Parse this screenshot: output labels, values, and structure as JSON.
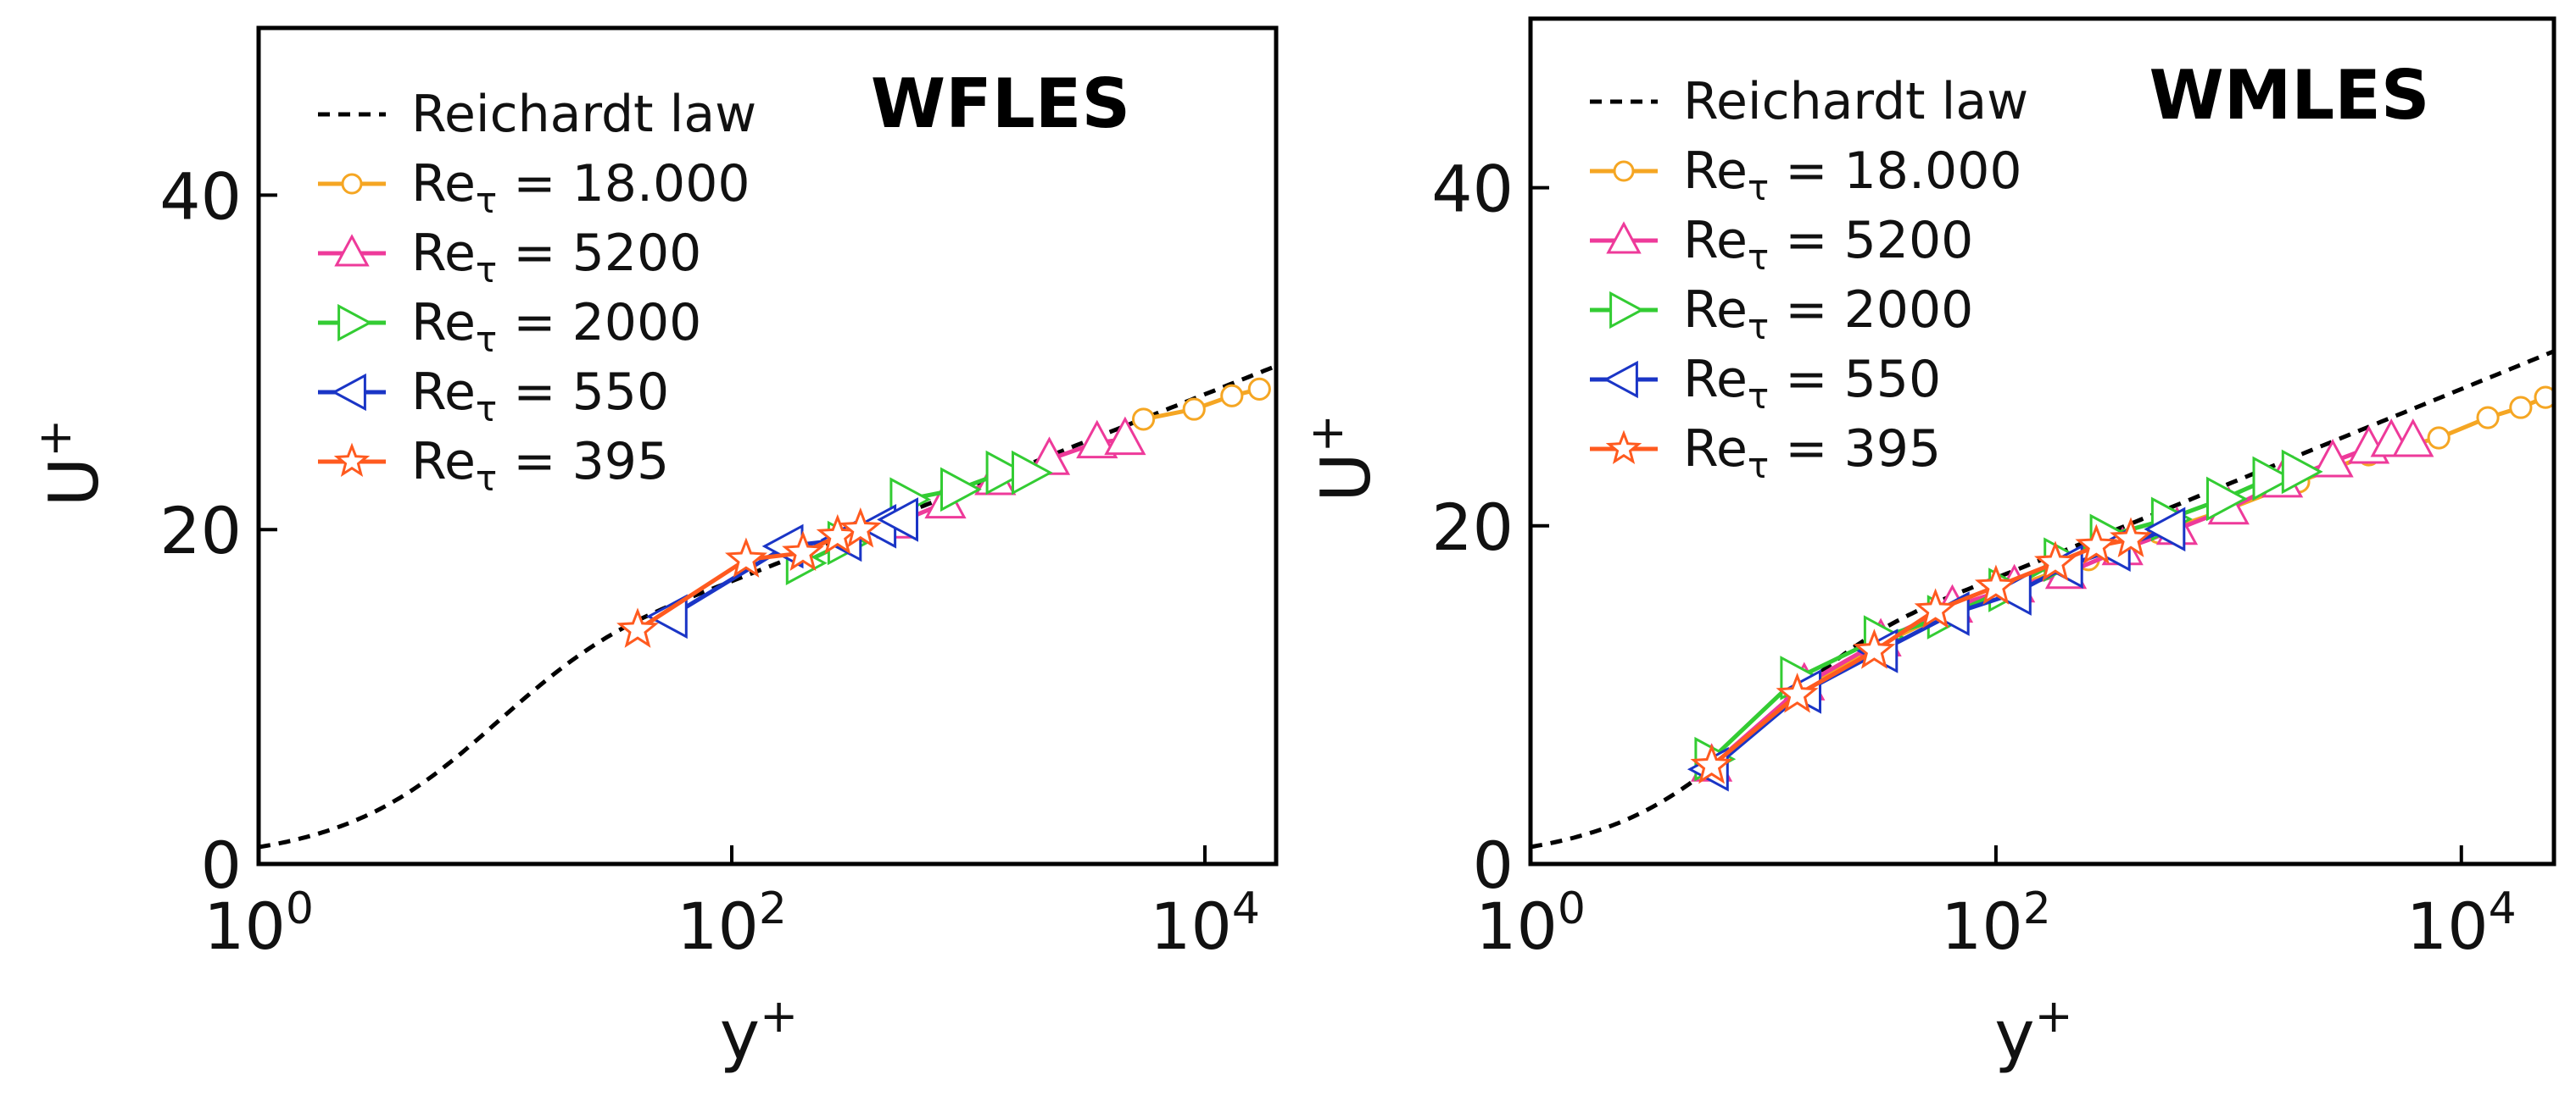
{
  "chart_data": [
    {
      "type": "line",
      "title": "WFLES",
      "xlabel": "y",
      "xlabel_sup": "+",
      "ylabel": "U",
      "ylabel_sup": "+",
      "xscale": "log",
      "xlim": [
        1,
        20000
      ],
      "ylim": [
        0,
        50
      ],
      "x_ticks": [
        {
          "base": "10",
          "exp": "0",
          "value": 1
        },
        {
          "base": "10",
          "exp": "2",
          "value": 100
        },
        {
          "base": "10",
          "exp": "4",
          "value": 10000
        }
      ],
      "y_ticks": [
        {
          "label": "0",
          "value": 0
        },
        {
          "label": "20",
          "value": 20
        },
        {
          "label": "40",
          "value": 40
        }
      ],
      "legend_position": "top-left",
      "reference": {
        "name": "Reichardt law",
        "color": "#000000",
        "dash": true,
        "x_min": 1,
        "x_max": 20000
      },
      "series": [
        {
          "name": "Re",
          "sub": "τ",
          "val": "= 18.000",
          "color": "#f5a623",
          "marker": "circle",
          "x": [
            5500,
            9000,
            13000,
            17000
          ],
          "y": [
            26.6,
            27.2,
            28.0,
            28.4
          ]
        },
        {
          "name": "Re",
          "sub": "τ",
          "val": "= 5200",
          "color": "#ee3a9a",
          "marker": "triangle-up",
          "x": [
            500,
            800,
            1300,
            2200,
            3500,
            4600
          ],
          "y": [
            20.4,
            21.6,
            23.0,
            24.2,
            25.2,
            25.4
          ]
        },
        {
          "name": "Re",
          "sub": "τ",
          "val": "= 2000",
          "color": "#33cc33",
          "marker": "triangle-right",
          "x": [
            200,
            300,
            550,
            900,
            1400,
            1800
          ],
          "y": [
            18.0,
            19.2,
            21.8,
            22.4,
            23.4,
            23.4
          ]
        },
        {
          "name": "Re",
          "sub": "τ",
          "val": "= 550",
          "color": "#1a35c6",
          "marker": "triangle-left",
          "x": [
            55,
            170,
            300,
            420,
            520
          ],
          "y": [
            14.8,
            19.0,
            19.4,
            20.2,
            20.6
          ]
        },
        {
          "name": "Re",
          "sub": "τ",
          "val": "= 395",
          "color": "#ff5a1f",
          "marker": "star",
          "x": [
            40,
            115,
            200,
            280,
            350
          ],
          "y": [
            14.0,
            18.2,
            18.6,
            19.6,
            20.0
          ]
        }
      ]
    },
    {
      "type": "line",
      "title": "WMLES",
      "xlabel": "y",
      "xlabel_sup": "+",
      "ylabel": "U",
      "ylabel_sup": "+",
      "xscale": "log",
      "xlim": [
        1,
        25000
      ],
      "ylim": [
        0,
        50
      ],
      "x_ticks": [
        {
          "base": "10",
          "exp": "0",
          "value": 1
        },
        {
          "base": "10",
          "exp": "2",
          "value": 100
        },
        {
          "base": "10",
          "exp": "4",
          "value": 10000
        }
      ],
      "y_ticks": [
        {
          "label": "0",
          "value": 0
        },
        {
          "label": "20",
          "value": 20
        },
        {
          "label": "40",
          "value": 40
        }
      ],
      "legend_position": "top-left",
      "reference": {
        "name": "Reichardt law",
        "color": "#000000",
        "dash": true,
        "x_min": 1,
        "x_max": 25000
      },
      "series": [
        {
          "name": "Re",
          "sub": "τ",
          "val": "= 18.000",
          "color": "#f5a623",
          "marker": "circle",
          "x": [
            6,
            15,
            32,
            65,
            120,
            250,
            500,
            1000,
            2000,
            4000,
            8000,
            13000,
            18000,
            23000
          ],
          "y": [
            5.8,
            10.4,
            13.0,
            15.0,
            16.4,
            18.0,
            19.6,
            21.0,
            22.6,
            24.2,
            25.2,
            26.4,
            27.0,
            27.6
          ]
        },
        {
          "name": "Re",
          "sub": "τ",
          "val": "= 5200",
          "color": "#ee3a9a",
          "marker": "triangle-up",
          "x": [
            6,
            15,
            32,
            65,
            120,
            200,
            350,
            600,
            1000,
            1700,
            2800,
            4000,
            5000,
            6200
          ],
          "y": [
            5.8,
            10.6,
            13.2,
            15.2,
            16.4,
            17.2,
            18.6,
            19.8,
            21.0,
            22.6,
            23.8,
            24.6,
            25.0,
            25.0
          ]
        },
        {
          "name": "Re",
          "sub": "τ",
          "val": "= 2000",
          "color": "#33cc33",
          "marker": "triangle-right",
          "x": [
            6,
            14,
            32,
            60,
            110,
            190,
            300,
            550,
            950,
            1500,
            2000
          ],
          "y": [
            6.2,
            11.0,
            13.4,
            14.6,
            16.2,
            18.0,
            19.4,
            20.4,
            21.6,
            22.8,
            23.2
          ]
        },
        {
          "name": "Re",
          "sub": "τ",
          "val": "= 550",
          "color": "#1a35c6",
          "marker": "triangle-left",
          "x": [
            6,
            15,
            32,
            65,
            120,
            200,
            320,
            550
          ],
          "y": [
            5.6,
            10.2,
            12.6,
            14.8,
            16.0,
            17.6,
            18.6,
            19.8
          ]
        },
        {
          "name": "Re",
          "sub": "τ",
          "val": "= 395",
          "color": "#ff5a1f",
          "marker": "star",
          "x": [
            6,
            14,
            30,
            55,
            100,
            180,
            270,
            380
          ],
          "y": [
            5.8,
            10.0,
            12.6,
            15.0,
            16.4,
            17.8,
            18.8,
            19.2
          ]
        }
      ]
    }
  ]
}
